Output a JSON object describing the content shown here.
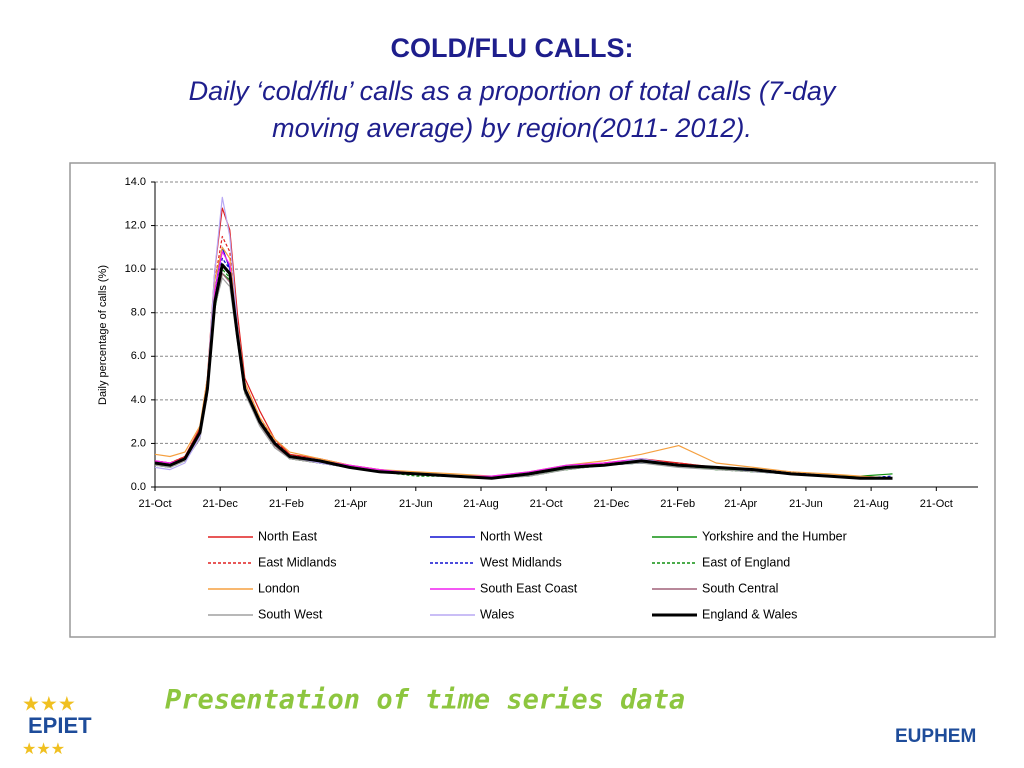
{
  "slide": {
    "title": "COLD/FLU CALLS:",
    "subtitle": [
      "Daily ‘cold/flu’ calls as a proportion of total calls (7-day",
      "moving average) by region(2011- 2012)."
    ],
    "footer": "Presentation of time series data",
    "logo_left": "EPIET",
    "logo_right": "EUPHEM"
  },
  "chart_data": {
    "type": "line",
    "ylabel": "Daily percentage of calls (%)",
    "x": [
      0,
      14,
      28,
      42,
      49,
      56,
      63,
      70,
      77,
      84,
      98,
      112,
      126,
      154,
      182,
      210,
      245,
      280,
      315,
      350,
      385,
      420,
      455,
      490,
      525,
      560,
      595,
      630,
      660,
      690
    ],
    "xlim": [
      0,
      770
    ],
    "xticks": [
      {
        "value": 0,
        "label": "21-Oct"
      },
      {
        "value": 61,
        "label": "21-Dec"
      },
      {
        "value": 123,
        "label": "21-Feb"
      },
      {
        "value": 183,
        "label": "21-Apr"
      },
      {
        "value": 244,
        "label": "21-Jun"
      },
      {
        "value": 305,
        "label": "21-Aug"
      },
      {
        "value": 366,
        "label": "21-Oct"
      },
      {
        "value": 427,
        "label": "21-Dec"
      },
      {
        "value": 489,
        "label": "21-Feb"
      },
      {
        "value": 548,
        "label": "21-Apr"
      },
      {
        "value": 609,
        "label": "21-Jun"
      },
      {
        "value": 670,
        "label": "21-Aug"
      },
      {
        "value": 731,
        "label": "21-Oct"
      }
    ],
    "ylim": [
      0,
      14
    ],
    "yticks": [
      {
        "value": 0,
        "label": "0.0"
      },
      {
        "value": 2,
        "label": "2.0"
      },
      {
        "value": 4,
        "label": "4.0"
      },
      {
        "value": 6,
        "label": "6.0"
      },
      {
        "value": 8,
        "label": "8.0"
      },
      {
        "value": 10,
        "label": "10.0"
      },
      {
        "value": 12,
        "label": "12.0"
      },
      {
        "value": 14,
        "label": "14.0"
      }
    ],
    "grid": true,
    "series": [
      {
        "name": "North East",
        "color": "#e02020",
        "dash": false,
        "values": [
          1.2,
          1.1,
          1.4,
          2.7,
          5,
          10,
          12.8,
          11.8,
          8,
          5,
          3.5,
          2.2,
          1.5,
          1.3,
          1.0,
          0.8,
          0.6,
          0.5,
          0.4,
          0.6,
          0.9,
          1.1,
          1.3,
          1.1,
          0.9,
          0.8,
          0.6,
          0.5,
          0.4,
          0.4
        ]
      },
      {
        "name": "North West",
        "color": "#1010d0",
        "dash": false,
        "values": [
          1.1,
          1.0,
          1.3,
          2.4,
          4.4,
          9,
          11,
          10,
          7,
          4.4,
          2.9,
          1.9,
          1.4,
          1.1,
          0.9,
          0.7,
          0.6,
          0.5,
          0.4,
          0.6,
          0.9,
          1.0,
          1.1,
          1.0,
          0.9,
          0.7,
          0.6,
          0.5,
          0.5,
          0.4
        ]
      },
      {
        "name": "Yorkshire and the Humber",
        "color": "#109010",
        "dash": false,
        "values": [
          1.0,
          1.0,
          1.2,
          2.3,
          4.3,
          8.2,
          9.8,
          9.5,
          6.8,
          4.3,
          2.9,
          1.9,
          1.3,
          1.1,
          0.9,
          0.7,
          0.6,
          0.5,
          0.4,
          0.6,
          0.8,
          1.0,
          1.2,
          1.0,
          0.8,
          0.8,
          0.6,
          0.5,
          0.5,
          0.6
        ]
      },
      {
        "name": "East Midlands",
        "color": "#e02020",
        "dash": true,
        "values": [
          1.2,
          1.1,
          1.4,
          2.6,
          4.8,
          9.5,
          11.5,
          10.8,
          7.5,
          4.8,
          3.2,
          2.1,
          1.5,
          1.2,
          0.9,
          0.7,
          0.6,
          0.5,
          0.4,
          0.6,
          0.9,
          1.1,
          1.2,
          1.1,
          0.9,
          0.8,
          0.6,
          0.5,
          0.4,
          0.4
        ]
      },
      {
        "name": "West Midlands",
        "color": "#1010d0",
        "dash": true,
        "values": [
          1.1,
          1.0,
          1.3,
          2.5,
          4.6,
          8.8,
          10.5,
          10,
          7.2,
          4.5,
          3.0,
          2.0,
          1.4,
          1.2,
          0.9,
          0.7,
          0.6,
          0.5,
          0.4,
          0.6,
          0.9,
          1.0,
          1.2,
          1.0,
          0.9,
          0.8,
          0.7,
          0.5,
          0.4,
          0.5
        ]
      },
      {
        "name": "East of England",
        "color": "#109010",
        "dash": true,
        "values": [
          1.0,
          0.9,
          1.2,
          2.4,
          4.4,
          8.6,
          10,
          9.6,
          6.9,
          4.4,
          2.9,
          1.9,
          1.3,
          1.1,
          0.9,
          0.7,
          0.5,
          0.5,
          0.4,
          0.5,
          0.8,
          1.0,
          1.1,
          1.0,
          0.8,
          0.7,
          0.6,
          0.5,
          0.4,
          0.4
        ]
      },
      {
        "name": "London",
        "color": "#f5a040",
        "dash": false,
        "values": [
          1.5,
          1.4,
          1.6,
          2.8,
          5,
          9.5,
          11,
          10.5,
          7.5,
          4.8,
          3.2,
          2.2,
          1.6,
          1.3,
          1.0,
          0.8,
          0.7,
          0.6,
          0.5,
          0.7,
          1.0,
          1.2,
          1.5,
          1.9,
          1.1,
          0.9,
          0.7,
          0.6,
          0.5,
          0.4
        ]
      },
      {
        "name": "South East Coast",
        "color": "#f020f0",
        "dash": false,
        "values": [
          1.2,
          1.1,
          1.3,
          2.4,
          4.6,
          9,
          10.8,
          10.2,
          7.2,
          4.6,
          3.0,
          2.0,
          1.4,
          1.2,
          1.0,
          0.8,
          0.6,
          0.5,
          0.5,
          0.7,
          1.0,
          1.1,
          1.3,
          1.0,
          0.9,
          0.8,
          0.6,
          0.5,
          0.4,
          0.4
        ]
      },
      {
        "name": "South Central",
        "color": "#a06078",
        "dash": false,
        "values": [
          1.0,
          1.0,
          1.2,
          2.3,
          4.3,
          8.5,
          9.8,
          9.4,
          6.8,
          4.4,
          2.9,
          1.9,
          1.3,
          1.1,
          0.9,
          0.7,
          0.6,
          0.5,
          0.4,
          0.6,
          0.9,
          1.0,
          1.2,
          1.0,
          0.9,
          0.8,
          0.6,
          0.5,
          0.4,
          0.4
        ]
      },
      {
        "name": "South West",
        "color": "#a0a0a0",
        "dash": false,
        "values": [
          1.0,
          0.9,
          1.2,
          2.2,
          4.2,
          8.3,
          9.6,
          9.2,
          6.7,
          4.3,
          2.8,
          1.8,
          1.3,
          1.1,
          0.9,
          0.7,
          0.6,
          0.5,
          0.4,
          0.5,
          0.8,
          1.0,
          1.1,
          0.9,
          0.8,
          0.7,
          0.6,
          0.5,
          0.4,
          0.4
        ]
      },
      {
        "name": "Wales",
        "color": "#b8a8f4",
        "dash": false,
        "values": [
          0.9,
          0.8,
          1.1,
          2.3,
          4.8,
          10,
          13.3,
          11.5,
          7.5,
          4.6,
          3.0,
          2.0,
          1.4,
          1.1,
          0.9,
          0.7,
          0.6,
          0.5,
          0.4,
          0.6,
          0.9,
          1.0,
          1.3,
          1.0,
          0.9,
          0.8,
          0.6,
          0.5,
          0.4,
          0.4
        ]
      },
      {
        "name": "England & Wales",
        "color": "#000000",
        "dash": false,
        "bold": true,
        "values": [
          1.1,
          1.0,
          1.3,
          2.5,
          4.5,
          8.5,
          10.2,
          9.8,
          7,
          4.5,
          3.0,
          2.0,
          1.4,
          1.2,
          0.9,
          0.7,
          0.6,
          0.5,
          0.4,
          0.6,
          0.9,
          1.0,
          1.2,
          1.0,
          0.9,
          0.8,
          0.6,
          0.5,
          0.4,
          0.4
        ]
      }
    ]
  }
}
